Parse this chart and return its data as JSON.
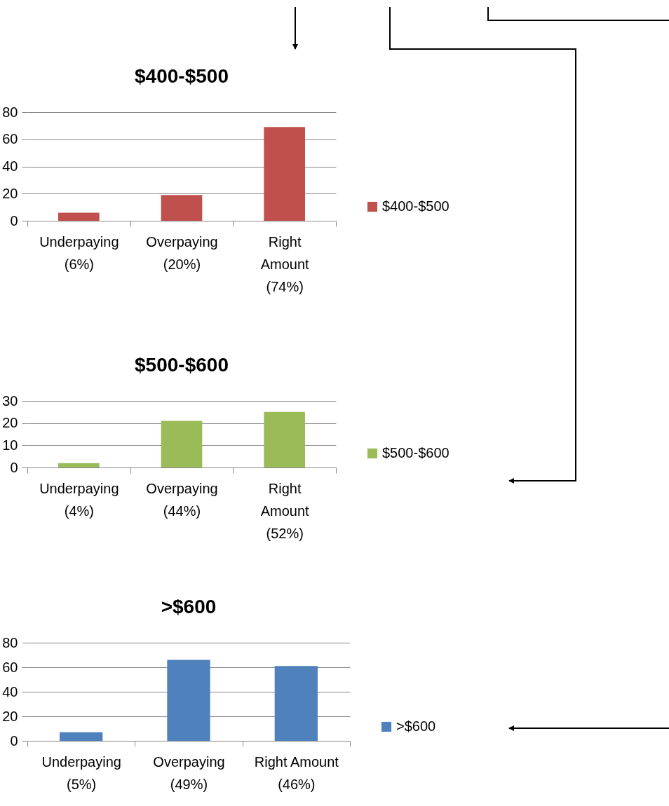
{
  "chart_data": [
    {
      "type": "bar",
      "title": "$400-$500",
      "categories": [
        "Underpaying\n(6%)",
        "Overpaying\n(20%)",
        "Right\nAmount\n(74%)"
      ],
      "series": [
        {
          "name": "$400-$500",
          "color": "#c0504d",
          "values": [
            6,
            19,
            69
          ]
        }
      ],
      "ylim": [
        0,
        80
      ],
      "yticks": [
        0,
        20,
        40,
        60,
        80
      ],
      "grid": "y",
      "legend": "right"
    },
    {
      "type": "bar",
      "title": "$500-$600",
      "categories": [
        "Underpaying\n(4%)",
        "Overpaying\n(44%)",
        "Right\nAmount\n(52%)"
      ],
      "series": [
        {
          "name": "$500-$600",
          "color": "#9bbb59",
          "values": [
            2,
            21,
            25
          ]
        }
      ],
      "ylim": [
        0,
        30
      ],
      "yticks": [
        0,
        10,
        20,
        30
      ],
      "grid": "y",
      "legend": "right"
    },
    {
      "type": "bar",
      "title": ">$600",
      "categories": [
        "Underpaying\n(5%)",
        "Overpaying\n(49%)",
        "Right Amount\n(46%)"
      ],
      "series": [
        {
          "name": ">$600",
          "color": "#4f81bd",
          "values": [
            7,
            66,
            61
          ]
        }
      ],
      "ylim": [
        0,
        80
      ],
      "yticks": [
        0,
        20,
        40,
        60,
        80
      ],
      "grid": "y",
      "legend": "right"
    }
  ]
}
